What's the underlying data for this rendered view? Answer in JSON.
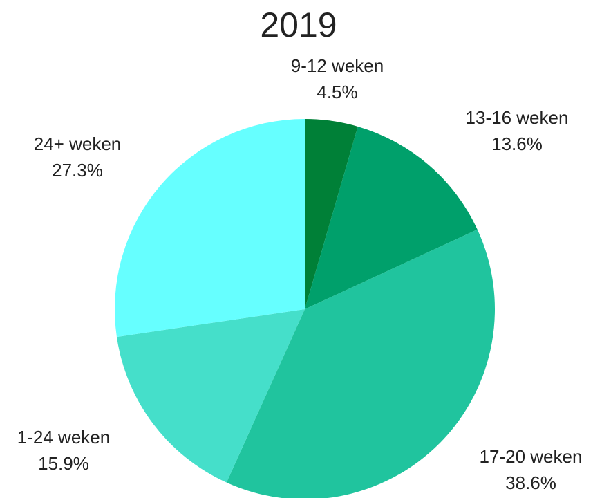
{
  "chart_data": {
    "type": "pie",
    "title": "2019",
    "categories": [
      "9-12 weken",
      "13-16 weken",
      "17-20 weken",
      "1-24 weken",
      "24+ weken"
    ],
    "values": [
      4.5,
      13.6,
      38.6,
      15.9,
      27.3
    ],
    "value_labels": [
      "4.5%",
      "13.6%",
      "38.6%",
      "15.9%",
      "27.3%"
    ],
    "colors": [
      "#008037",
      "#00a06b",
      "#20c49e",
      "#45dfca",
      "#66ffff"
    ]
  }
}
